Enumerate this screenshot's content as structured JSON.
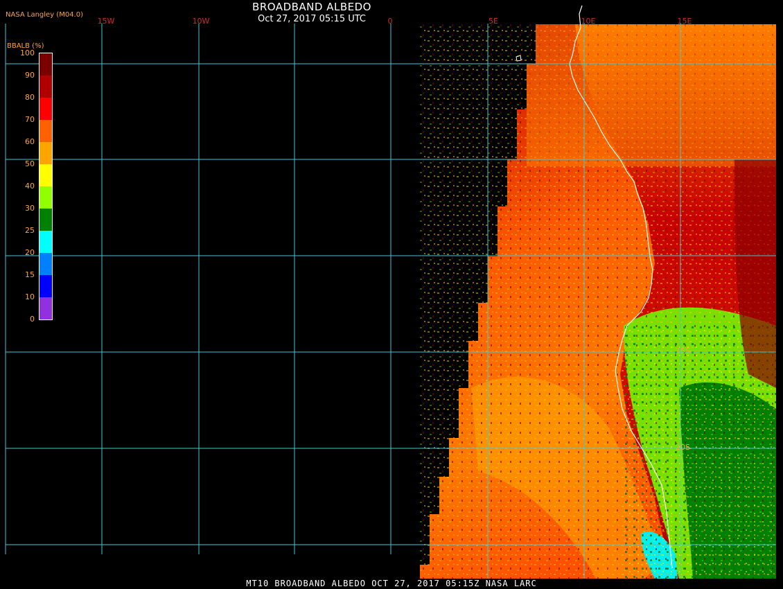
{
  "header": {
    "title": "BROADBAND ALBEDO",
    "subtitle": "Oct 27, 2017 05:15 UTC",
    "credit": "NASA Langley (M04.0)"
  },
  "footer": {
    "text": "MT10  BROADBAND ALBEDO   OCT 27, 2017 05:15Z   NASA LARC"
  },
  "longitude_labels": [
    "15W",
    "10W",
    "0",
    "5E",
    "10E",
    "15E"
  ],
  "latitude_labels": [
    "15S",
    "20S"
  ],
  "legend": {
    "title": "BBALB (%)",
    "ticks": [
      "100",
      "90",
      "80",
      "70",
      "60",
      "50",
      "40",
      "30",
      "25",
      "20",
      "15",
      "10",
      "0"
    ],
    "colors": [
      "#7a0000",
      "#b00000",
      "#ff0000",
      "#ff6000",
      "#ffa500",
      "#ffff00",
      "#90ff00",
      "#008000",
      "#00ffff",
      "#0080ff",
      "#0000ff",
      "#9030e0"
    ]
  },
  "colors": {
    "grid": "#40c8d8",
    "coastline": "#ffffff",
    "lon_label": "#d12a2a",
    "lat_label": "#e6b23a"
  }
}
